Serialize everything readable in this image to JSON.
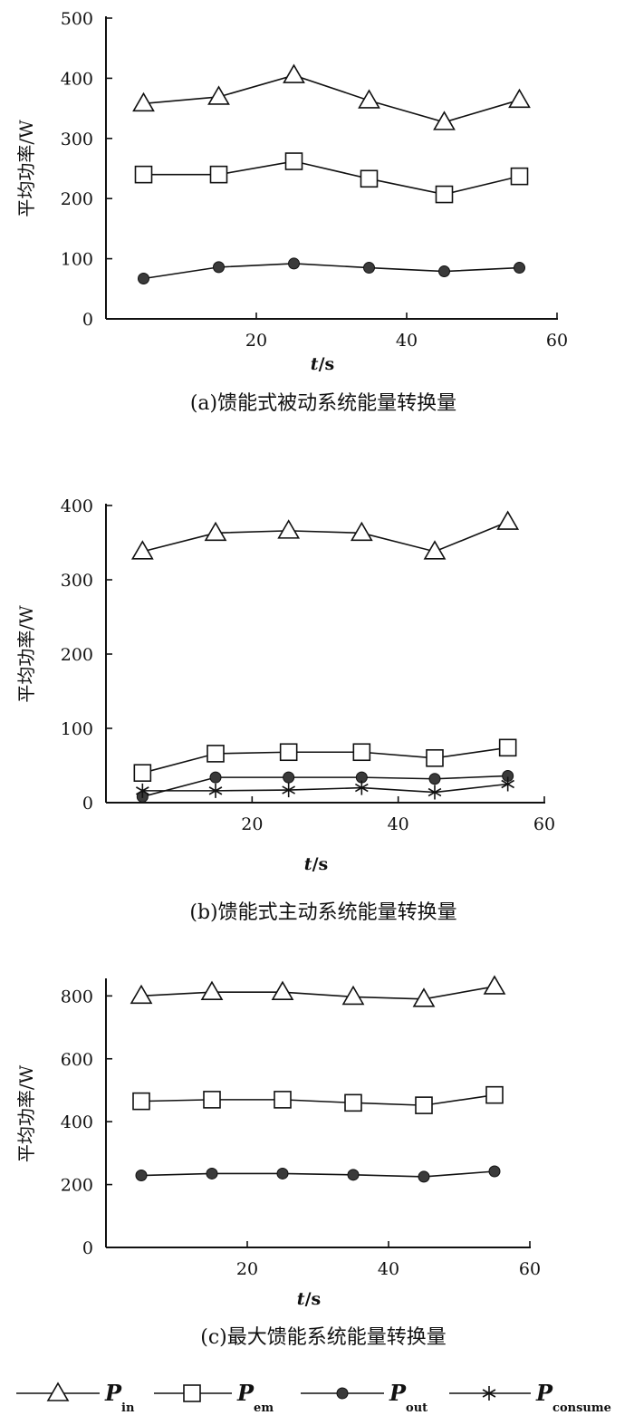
{
  "chart_data": [
    {
      "type": "line",
      "caption": "(a)馈能式被动系统能量转换量",
      "xlabel": "t/s",
      "ylabel": "平均功率/W",
      "xlim": [
        0,
        60
      ],
      "ylim": [
        0,
        500
      ],
      "xticks": [
        20,
        40,
        60
      ],
      "yticks": [
        0,
        100,
        200,
        300,
        400,
        500
      ],
      "x": [
        5,
        15,
        25,
        35,
        45,
        55
      ],
      "series": [
        {
          "name": "P_in",
          "marker": "triangle",
          "values": [
            358,
            369,
            405,
            363,
            327,
            364
          ]
        },
        {
          "name": "P_em",
          "marker": "square",
          "values": [
            240,
            240,
            262,
            233,
            207,
            237
          ]
        },
        {
          "name": "P_out",
          "marker": "circle",
          "values": [
            67,
            86,
            92,
            85,
            79,
            85
          ]
        }
      ]
    },
    {
      "type": "line",
      "caption": "(b)馈能式主动系统能量转换量",
      "xlabel": "t/s",
      "ylabel": "平均功率/W",
      "xlim": [
        0,
        60
      ],
      "ylim": [
        0,
        400
      ],
      "xticks": [
        20,
        40,
        60
      ],
      "yticks": [
        0,
        100,
        200,
        300,
        400
      ],
      "x": [
        5,
        15,
        25,
        35,
        45,
        55
      ],
      "series": [
        {
          "name": "P_in",
          "marker": "triangle",
          "values": [
            338,
            363,
            366,
            363,
            338,
            378
          ]
        },
        {
          "name": "P_em",
          "marker": "square",
          "values": [
            40,
            66,
            68,
            68,
            60,
            74
          ]
        },
        {
          "name": "P_out",
          "marker": "circle",
          "values": [
            8,
            34,
            34,
            34,
            32,
            36
          ]
        },
        {
          "name": "P_consume",
          "marker": "star",
          "values": [
            16,
            16,
            17,
            20,
            14,
            25
          ]
        }
      ]
    },
    {
      "type": "line",
      "caption": "(c)最大馈能系统能量转换量",
      "xlabel": "t/s",
      "ylabel": "平均功率/W",
      "xlim": [
        0,
        60
      ],
      "ylim": [
        0,
        850
      ],
      "xticks": [
        20,
        40,
        60
      ],
      "yticks": [
        0,
        200,
        400,
        600,
        800
      ],
      "x": [
        5,
        15,
        25,
        35,
        45,
        55
      ],
      "series": [
        {
          "name": "P_in",
          "marker": "triangle",
          "values": [
            800,
            812,
            812,
            797,
            790,
            830
          ]
        },
        {
          "name": "P_em",
          "marker": "square",
          "values": [
            465,
            470,
            470,
            460,
            452,
            485
          ]
        },
        {
          "name": "P_out",
          "marker": "circle",
          "values": [
            229,
            235,
            235,
            231,
            225,
            242
          ]
        }
      ]
    }
  ],
  "legend": [
    {
      "marker": "triangle",
      "main": "P",
      "sub": "in"
    },
    {
      "marker": "square",
      "main": "P",
      "sub": "em"
    },
    {
      "marker": "circle",
      "main": "P",
      "sub": "out"
    },
    {
      "marker": "star",
      "main": "P",
      "sub": "consume"
    }
  ]
}
